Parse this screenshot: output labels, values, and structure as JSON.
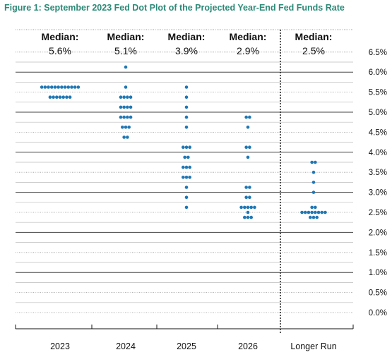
{
  "chart_data": {
    "type": "scatter",
    "title": "Figure 1: September 2023 Fed Dot Plot of the Projected Year-End Fed Funds Rate",
    "categories": [
      "2023",
      "2024",
      "2025",
      "2026",
      "Longer Run"
    ],
    "y_ticks": [
      "0.0%",
      "0.5%",
      "1.0%",
      "1.5%",
      "2.0%",
      "2.5%",
      "3.0%",
      "3.5%",
      "4.0%",
      "4.5%",
      "5.0%",
      "5.5%",
      "6.0%",
      "6.5%"
    ],
    "ylim": [
      0,
      6.5
    ],
    "median_label": "Median:",
    "medians": [
      "5.6%",
      "5.1%",
      "3.9%",
      "2.9%",
      "2.5%"
    ],
    "median_values": [
      5.625,
      5.125,
      3.875,
      2.875,
      2.5
    ],
    "dots": [
      {
        "category": "2023",
        "values": [
          {
            "y": 5.625,
            "count": 12
          },
          {
            "y": 5.375,
            "count": 7
          }
        ]
      },
      {
        "category": "2024",
        "values": [
          {
            "y": 6.125,
            "count": 1
          },
          {
            "y": 5.625,
            "count": 1
          },
          {
            "y": 5.375,
            "count": 4
          },
          {
            "y": 5.125,
            "count": 4
          },
          {
            "y": 4.875,
            "count": 4
          },
          {
            "y": 4.625,
            "count": 3
          },
          {
            "y": 4.375,
            "count": 2
          }
        ]
      },
      {
        "category": "2025",
        "values": [
          {
            "y": 5.625,
            "count": 1
          },
          {
            "y": 5.375,
            "count": 1
          },
          {
            "y": 5.125,
            "count": 1
          },
          {
            "y": 4.875,
            "count": 1
          },
          {
            "y": 4.625,
            "count": 1
          },
          {
            "y": 4.125,
            "count": 3
          },
          {
            "y": 3.875,
            "count": 2
          },
          {
            "y": 3.625,
            "count": 3
          },
          {
            "y": 3.375,
            "count": 3
          },
          {
            "y": 3.125,
            "count": 1
          },
          {
            "y": 2.875,
            "count": 1
          },
          {
            "y": 2.625,
            "count": 1
          }
        ]
      },
      {
        "category": "2026",
        "values": [
          {
            "y": 4.875,
            "count": 2
          },
          {
            "y": 4.625,
            "count": 1
          },
          {
            "y": 4.125,
            "count": 2
          },
          {
            "y": 3.875,
            "count": 1
          },
          {
            "y": 3.125,
            "count": 2
          },
          {
            "y": 2.875,
            "count": 2
          },
          {
            "y": 2.625,
            "count": 5
          },
          {
            "y": 2.5,
            "count": 1
          },
          {
            "y": 2.375,
            "count": 3
          }
        ]
      },
      {
        "category": "Longer Run",
        "values": [
          {
            "y": 3.75,
            "count": 2
          },
          {
            "y": 3.5,
            "count": 1
          },
          {
            "y": 3.25,
            "count": 1
          },
          {
            "y": 3.0,
            "count": 1
          },
          {
            "y": 2.625,
            "count": 2
          },
          {
            "y": 2.5,
            "count": 8
          },
          {
            "y": 2.375,
            "count": 3
          }
        ]
      }
    ],
    "dot_color": "#1f77b4",
    "title_color": "#2c8a77",
    "grid": true,
    "legend": "none"
  }
}
